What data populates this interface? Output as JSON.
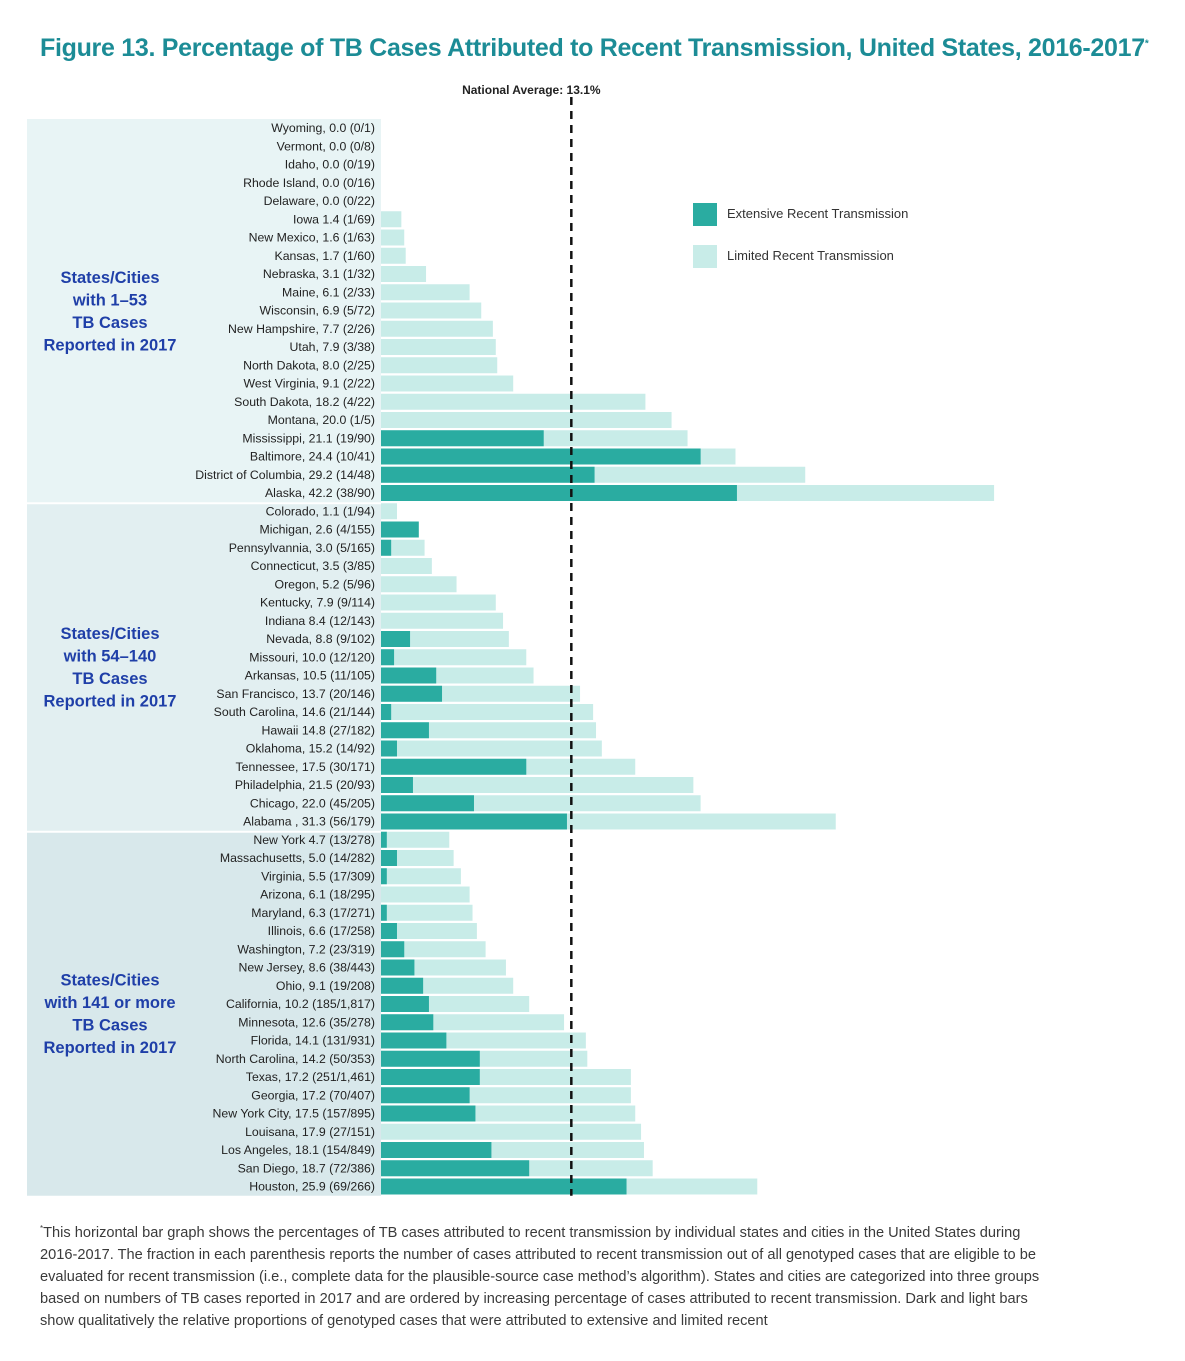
{
  "title": "Figure 13.  Percentage of TB Cases Attributed to Recent Transmission, United States, 2016-2017",
  "title_marker": "*",
  "footnote_marker": "*",
  "footnote": "This horizontal bar graph shows the percentages of TB cases attributed to recent transmission by individual states and cities in the United States during 2016-2017. The fraction in each parenthesis reports the number of cases attributed to recent transmission out of all genotyped cases that are eligible to be evaluated for recent transmission (i.e., complete data for the plausible-source case method’s algorithm). States and cities are categorized into three groups based on numbers of TB cases reported in 2017 and are ordered by increasing percentage of cases attributed to recent transmission. Dark and light bars show qualitatively the relative proportions of genotyped cases that were attributed to extensive and limited recent",
  "colors": {
    "extensive": "#2aaca1",
    "limited": "#c8ece8",
    "title": "#1c8c96",
    "group_label": "#1f3fa8",
    "group_bg": [
      "#e8f4f5",
      "#e2eff1",
      "#d8e8eb"
    ],
    "text": "#222222"
  },
  "chart_data": {
    "type": "bar",
    "orientation": "horizontal",
    "stacked": true,
    "title": "Percentage of TB Cases Attributed to Recent Transmission, United States, 2016-2017",
    "xlim": [
      0,
      53
    ],
    "reference_line": {
      "label": "National Average: 13.1%",
      "value": 13.1
    },
    "legend": {
      "position": "top-right",
      "items": [
        {
          "name": "Extensive Recent Transmission",
          "key": "extensive"
        },
        {
          "name": "Limited Recent Transmission",
          "key": "limited"
        }
      ]
    },
    "series": [
      {
        "name": "Extensive Recent Transmission",
        "key": "extensive"
      },
      {
        "name": "Limited Recent Transmission",
        "key": "limited"
      }
    ],
    "groups": [
      {
        "label": [
          "States/Cities",
          "with 1–53",
          "TB Cases",
          "Reported in 2017"
        ],
        "rows": [
          {
            "label": "Wyoming, 0.0 (0/1)",
            "total": 0.0,
            "extensive": 0
          },
          {
            "label": "Vermont, 0.0 (0/8)",
            "total": 0.0,
            "extensive": 0
          },
          {
            "label": "Idaho, 0.0 (0/19)",
            "total": 0.0,
            "extensive": 0
          },
          {
            "label": "Rhode Island, 0.0 (0/16)",
            "total": 0.0,
            "extensive": 0
          },
          {
            "label": "Delaware, 0.0 (0/22)",
            "total": 0.0,
            "extensive": 0
          },
          {
            "label": "Iowa 1.4 (1/69)",
            "total": 1.4,
            "extensive": 0
          },
          {
            "label": "New Mexico, 1.6 (1/63)",
            "total": 1.6,
            "extensive": 0
          },
          {
            "label": "Kansas, 1.7 (1/60)",
            "total": 1.7,
            "extensive": 0
          },
          {
            "label": "Nebraska, 3.1 (1/32)",
            "total": 3.1,
            "extensive": 0
          },
          {
            "label": "Maine, 6.1 (2/33)",
            "total": 6.1,
            "extensive": 0
          },
          {
            "label": "Wisconsin, 6.9 (5/72)",
            "total": 6.9,
            "extensive": 0
          },
          {
            "label": "New Hampshire, 7.7 (2/26)",
            "total": 7.7,
            "extensive": 0
          },
          {
            "label": "Utah, 7.9 (3/38)",
            "total": 7.9,
            "extensive": 0
          },
          {
            "label": "North Dakota, 8.0 (2/25)",
            "total": 8.0,
            "extensive": 0
          },
          {
            "label": "West Virginia, 9.1 (2/22)",
            "total": 9.1,
            "extensive": 0
          },
          {
            "label": "South Dakota, 18.2 (4/22)",
            "total": 18.2,
            "extensive": 0
          },
          {
            "label": "Montana, 20.0 (1/5)",
            "total": 20.0,
            "extensive": 0
          },
          {
            "label": "Mississippi, 21.1 (19/90)",
            "total": 21.1,
            "extensive": 11.2
          },
          {
            "label": "Baltimore, 24.4 (10/41)",
            "total": 24.4,
            "extensive": 22.0
          },
          {
            "label": "District of Columbia, 29.2 (14/48)",
            "total": 29.2,
            "extensive": 14.7
          },
          {
            "label": "Alaska, 42.2 (38/90)",
            "total": 42.2,
            "extensive": 24.5
          }
        ]
      },
      {
        "label": [
          "States/Cities",
          "with 54–140",
          "TB Cases",
          "Reported in 2017"
        ],
        "rows": [
          {
            "label": "Colorado, 1.1  (1/94)",
            "total": 1.1,
            "extensive": 0
          },
          {
            "label": "Michigan, 2.6 (4/155)",
            "total": 2.6,
            "extensive": 2.6
          },
          {
            "label": "Pennsylvannia, 3.0 (5/165)",
            "total": 3.0,
            "extensive": 0.7
          },
          {
            "label": "Connecticut, 3.5 (3/85)",
            "total": 3.5,
            "extensive": 0
          },
          {
            "label": "Oregon, 5.2 (5/96)",
            "total": 5.2,
            "extensive": 0
          },
          {
            "label": "Kentucky, 7.9 (9/114)",
            "total": 7.9,
            "extensive": 0
          },
          {
            "label": "Indiana 8.4 (12/143)",
            "total": 8.4,
            "extensive": 0
          },
          {
            "label": "Nevada, 8.8 (9/102)",
            "total": 8.8,
            "extensive": 2.0
          },
          {
            "label": "Missouri, 10.0 (12/120)",
            "total": 10.0,
            "extensive": 0.9
          },
          {
            "label": "Arkansas, 10.5 (11/105)",
            "total": 10.5,
            "extensive": 3.8
          },
          {
            "label": "San Francisco, 13.7 (20/146)",
            "total": 13.7,
            "extensive": 4.2
          },
          {
            "label": "South Carolina, 14.6 (21/144)",
            "total": 14.6,
            "extensive": 0.7
          },
          {
            "label": "Hawaii 14.8 (27/182)",
            "total": 14.8,
            "extensive": 3.3
          },
          {
            "label": "Oklahoma, 15.2 (14/92)",
            "total": 15.2,
            "extensive": 1.1
          },
          {
            "label": "Tennessee, 17.5 (30/171)",
            "total": 17.5,
            "extensive": 10.0
          },
          {
            "label": "Philadelphia, 21.5 (20/93)",
            "total": 21.5,
            "extensive": 2.2
          },
          {
            "label": "Chicago, 22.0 (45/205)",
            "total": 22.0,
            "extensive": 6.4
          },
          {
            "label": "Alabama , 31.3 (56/179)",
            "total": 31.3,
            "extensive": 12.8
          }
        ]
      },
      {
        "label": [
          "States/Cities",
          "with 141 or more",
          "TB Cases",
          "Reported in 2017"
        ],
        "rows": [
          {
            "label": "New York 4.7 (13/278)",
            "total": 4.7,
            "extensive": 0.4
          },
          {
            "label": "Massachusetts, 5.0 (14/282)",
            "total": 5.0,
            "extensive": 1.1
          },
          {
            "label": "Virginia, 5.5 (17/309)",
            "total": 5.5,
            "extensive": 0.4
          },
          {
            "label": "Arizona, 6.1 (18/295)",
            "total": 6.1,
            "extensive": 0
          },
          {
            "label": "Maryland, 6.3 (17/271)",
            "total": 6.3,
            "extensive": 0.4
          },
          {
            "label": "Illinois, 6.6 (17/258)",
            "total": 6.6,
            "extensive": 1.1
          },
          {
            "label": "Washington, 7.2 (23/319)",
            "total": 7.2,
            "extensive": 1.6
          },
          {
            "label": "New Jersey, 8.6 (38/443)",
            "total": 8.6,
            "extensive": 2.3
          },
          {
            "label": "Ohio, 9.1 (19/208)",
            "total": 9.1,
            "extensive": 2.9
          },
          {
            "label": "California, 10.2 (185/1,817)",
            "total": 10.2,
            "extensive": 3.3
          },
          {
            "label": "Minnesota, 12.6 (35/278)",
            "total": 12.6,
            "extensive": 3.6
          },
          {
            "label": "Florida, 14.1 (131/931)",
            "total": 14.1,
            "extensive": 4.5
          },
          {
            "label": "North Carolina, 14.2 (50/353)",
            "total": 14.2,
            "extensive": 6.8
          },
          {
            "label": "Texas, 17.2 (251/1,461)",
            "total": 17.2,
            "extensive": 6.8
          },
          {
            "label": "Georgia, 17.2 (70/407)",
            "total": 17.2,
            "extensive": 6.1
          },
          {
            "label": "New York City, 17.5 (157/895)",
            "total": 17.5,
            "extensive": 6.5
          },
          {
            "label": "Louisana, 17.9 (27/151)",
            "total": 17.9,
            "extensive": 0
          },
          {
            "label": "Los Angeles, 18.1 (154/849)",
            "total": 18.1,
            "extensive": 7.6
          },
          {
            "label": "San Diego, 18.7 (72/386)",
            "total": 18.7,
            "extensive": 10.2
          },
          {
            "label": "Houston, 25.9 (69/266)",
            "total": 25.9,
            "extensive": 16.9
          }
        ]
      }
    ]
  }
}
